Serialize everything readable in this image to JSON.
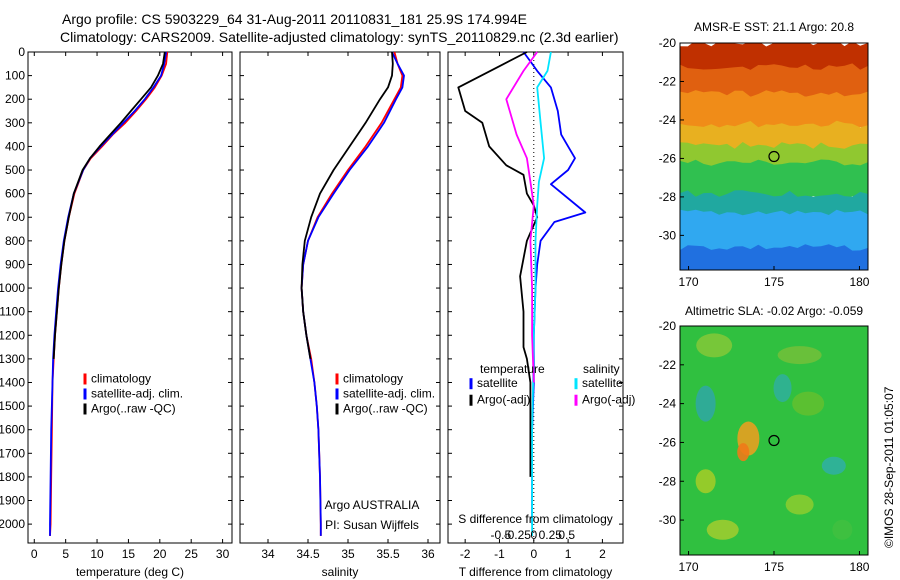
{
  "header": {
    "line1": "Argo profile: CS 5903229_64 31-Aug-2011 20110831_181 25.9S 174.994E",
    "line2": "Climatology: CARS2009. Satellite-adjusted climatology: synTS_20110829.nc (2.3d earlier)"
  },
  "colors": {
    "climatology": "#ff0000",
    "satellite": "#0000ff",
    "argo": "#000000",
    "sal_satellite": "#00e5ff",
    "sal_argo": "#ff00ff"
  },
  "footer_stamp": "©IMOS 28-Sep-2011 01:05:07",
  "chart_data": [
    {
      "type": "line",
      "id": "temperature",
      "xlabel": "temperature (deg C)",
      "ylabel": "",
      "xlim": [
        -1,
        31.5
      ],
      "ylim": [
        2080,
        0
      ],
      "xticks": [
        0,
        5,
        10,
        15,
        20,
        25,
        30
      ],
      "yticks": [
        0,
        100,
        200,
        300,
        400,
        500,
        600,
        700,
        800,
        900,
        1000,
        1100,
        1200,
        1300,
        1400,
        1500,
        1600,
        1700,
        1800,
        1900,
        2000
      ],
      "legend": {
        "placement": "lower-left",
        "entries": [
          "climatology",
          "satellite-adj. clim.",
          "Argo(..raw -QC)"
        ]
      },
      "series": [
        {
          "name": "climatology",
          "color": "#ff0000",
          "x": [
            21.2,
            21.0,
            20.3,
            19.2,
            17.8,
            16.2,
            14.5,
            12.5,
            10.8,
            9.0,
            7.8,
            6.4,
            5.5,
            4.8,
            4.3,
            3.9,
            3.6,
            3.3,
            3.1,
            2.9,
            2.8,
            2.7,
            2.6,
            2.5
          ],
          "y": [
            0,
            50,
            100,
            150,
            200,
            250,
            300,
            350,
            400,
            450,
            500,
            600,
            700,
            800,
            900,
            1000,
            1100,
            1200,
            1300,
            1400,
            1600,
            1800,
            2000,
            2050
          ]
        },
        {
          "name": "satellite-adj. clim.",
          "color": "#0000ff",
          "x": [
            21.0,
            20.7,
            20.2,
            19.0,
            17.6,
            16.0,
            14.2,
            12.4,
            10.6,
            8.9,
            7.8,
            6.3,
            5.4,
            4.7,
            4.2,
            3.8,
            3.5,
            3.2,
            3.0,
            2.9,
            2.7,
            2.6,
            2.5,
            2.5
          ],
          "y": [
            0,
            50,
            100,
            150,
            200,
            250,
            300,
            350,
            400,
            450,
            500,
            600,
            700,
            800,
            900,
            1000,
            1100,
            1200,
            1300,
            1400,
            1600,
            1800,
            2000,
            2050
          ]
        },
        {
          "name": "Argo(..raw -QC)",
          "color": "#000000",
          "x": [
            20.8,
            20.5,
            19.7,
            18.6,
            17.0,
            15.4,
            13.8,
            12.1,
            10.4,
            8.9,
            7.7,
            6.3,
            5.5,
            4.8,
            4.3,
            3.9,
            3.6,
            3.3,
            3.1
          ],
          "y": [
            0,
            50,
            100,
            150,
            200,
            250,
            300,
            350,
            400,
            450,
            500,
            600,
            700,
            800,
            900,
            1000,
            1100,
            1200,
            1300
          ]
        }
      ]
    },
    {
      "type": "line",
      "id": "salinity",
      "xlabel": "salinity",
      "ylabel": "",
      "xlim": [
        33.65,
        36.15
      ],
      "ylim": [
        2080,
        0
      ],
      "xticks": [
        34,
        34.5,
        35,
        35.5,
        36
      ],
      "legend": {
        "placement": "lower-right",
        "entries": [
          "climatology",
          "satellite-adj. clim.",
          "Argo(..raw -QC)"
        ]
      },
      "annotation": [
        "Argo AUSTRALIA",
        "PI: Susan Wijffels"
      ],
      "series": [
        {
          "name": "climatology",
          "color": "#ff0000",
          "x": [
            35.58,
            35.62,
            35.68,
            35.66,
            35.58,
            35.42,
            35.22,
            35.0,
            34.8,
            34.62,
            34.5,
            34.44,
            34.42,
            34.44,
            34.48,
            34.54,
            34.58,
            34.61,
            34.63,
            34.65,
            34.66,
            34.66
          ],
          "y": [
            0,
            50,
            100,
            150,
            200,
            300,
            400,
            500,
            600,
            700,
            800,
            900,
            1000,
            1100,
            1200,
            1300,
            1400,
            1500,
            1600,
            1800,
            2000,
            2050
          ]
        },
        {
          "name": "satellite-adj. clim.",
          "color": "#0000ff",
          "x": [
            35.55,
            35.62,
            35.7,
            35.68,
            35.6,
            35.45,
            35.25,
            35.02,
            34.82,
            34.63,
            34.5,
            34.44,
            34.42,
            34.44,
            34.48,
            34.53,
            34.58,
            34.61,
            34.63,
            34.65,
            34.66,
            34.66
          ],
          "y": [
            0,
            50,
            100,
            150,
            200,
            300,
            400,
            500,
            600,
            700,
            800,
            900,
            1000,
            1100,
            1200,
            1300,
            1400,
            1500,
            1600,
            1800,
            2000,
            2050
          ]
        },
        {
          "name": "Argo(..raw -QC)",
          "color": "#000000",
          "x": [
            35.55,
            35.56,
            35.55,
            35.5,
            35.4,
            35.22,
            35.02,
            34.82,
            34.65,
            34.54,
            34.46,
            34.43,
            34.42,
            34.44,
            34.48,
            34.53
          ],
          "y": [
            0,
            50,
            100,
            150,
            200,
            300,
            400,
            500,
            600,
            700,
            800,
            900,
            1000,
            1100,
            1200,
            1300
          ]
        }
      ]
    },
    {
      "type": "line",
      "id": "difference",
      "xlabel_top": "S difference from climatology",
      "xlabel": "T difference from climatology",
      "xlim": [
        -2.5,
        2.6
      ],
      "ylim": [
        2080,
        0
      ],
      "xticks": [
        -2,
        -1,
        0,
        1,
        2
      ],
      "xticks_s": [
        -0.5,
        -0.25,
        0,
        0.25,
        0.5
      ],
      "xticklabels_s": [
        "-0.5",
        "-0.25",
        "0",
        "0.25",
        "0.5"
      ],
      "legend": {
        "placement": "lower",
        "temperature_title": "temperature",
        "salinity_title": "salinity",
        "entries": [
          "satellite",
          "Argo(-adj)",
          "satellite",
          "Argo(-adj)"
        ]
      },
      "series": [
        {
          "name": "satellite",
          "color": "#0000ff",
          "x": [
            -0.3,
            -0.1,
            0.1,
            0.5,
            0.7,
            0.8,
            1.0,
            1.2,
            1.0,
            0.5,
            1.5,
            0.6,
            0.2,
            0.1,
            0.05,
            0.0,
            0.0,
            -0.05,
            -0.05,
            -0.05
          ],
          "y": [
            0,
            40,
            80,
            150,
            250,
            350,
            400,
            450,
            500,
            560,
            680,
            720,
            800,
            900,
            1000,
            1200,
            1400,
            1600,
            1800,
            2000
          ]
        },
        {
          "name": "Argo(-adj)",
          "color": "#000000",
          "x": [
            -0.2,
            -1.0,
            -2.2,
            -2.0,
            -1.5,
            -1.3,
            -0.8,
            -0.3,
            -0.2,
            0.0,
            0.1,
            -0.2,
            -0.4,
            -0.3,
            -0.3,
            -0.2,
            -0.1,
            -0.1,
            -0.1
          ],
          "y": [
            0,
            60,
            150,
            250,
            300,
            400,
            480,
            520,
            600,
            650,
            700,
            800,
            950,
            1100,
            1250,
            1300,
            1400,
            1600,
            1800
          ]
        },
        {
          "name": "satellite",
          "color": "#00e5ff",
          "x": [
            0.5,
            0.4,
            0.1,
            0.2,
            0.3,
            0.15,
            0.1,
            0.05,
            0.05,
            0.0,
            -0.02,
            -0.05,
            -0.05,
            -0.05
          ],
          "y": [
            0,
            80,
            150,
            300,
            450,
            550,
            650,
            800,
            1000,
            1200,
            1400,
            1600,
            1800,
            2050
          ]
        },
        {
          "name": "Argo(-adj)",
          "color": "#ff00ff",
          "x": [
            0.1,
            -0.3,
            -0.8,
            -0.5,
            -0.2,
            -0.1,
            0.0,
            -0.1,
            -0.05,
            -0.05,
            0.0
          ],
          "y": [
            0,
            80,
            200,
            350,
            450,
            550,
            650,
            800,
            1000,
            1200,
            1400
          ]
        }
      ]
    },
    {
      "type": "heatmap",
      "id": "sst",
      "title": "AMSR-E SST: 21.1 Argo: 20.8",
      "xlim": [
        169.5,
        180.5
      ],
      "ylim": [
        -31.8,
        -20
      ],
      "xticks": [
        170,
        175,
        180
      ],
      "yticks": [
        -20,
        -22,
        -24,
        -26,
        -28,
        -30
      ],
      "marker": {
        "x": 175,
        "y": -25.9
      },
      "color_bands": [
        {
          "y0": -20,
          "y1": -21.2,
          "color": "#c03000"
        },
        {
          "y0": -21.2,
          "y1": -22.6,
          "color": "#e06010"
        },
        {
          "y0": -22.6,
          "y1": -24.2,
          "color": "#f08c18"
        },
        {
          "y0": -24.2,
          "y1": -25.3,
          "color": "#e8b020"
        },
        {
          "y0": -25.3,
          "y1": -26.2,
          "color": "#90c830"
        },
        {
          "y0": -26.2,
          "y1": -27.8,
          "color": "#30c050"
        },
        {
          "y0": -27.8,
          "y1": -28.8,
          "color": "#20a8a0"
        },
        {
          "y0": -28.8,
          "y1": -30.6,
          "color": "#30a8f0"
        },
        {
          "y0": -30.6,
          "y1": -31.8,
          "color": "#2070e0"
        }
      ]
    },
    {
      "type": "heatmap",
      "id": "sla",
      "title": "Altimetric SLA: -0.02 Argo: -0.059",
      "xlim": [
        169.5,
        180.5
      ],
      "ylim": [
        -31.8,
        -20
      ],
      "xticks": [
        170,
        175,
        180
      ],
      "yticks": [
        -20,
        -22,
        -24,
        -26,
        -28,
        -30
      ],
      "marker": {
        "x": 175,
        "y": -25.9
      },
      "base_color": "#30c040"
    }
  ]
}
